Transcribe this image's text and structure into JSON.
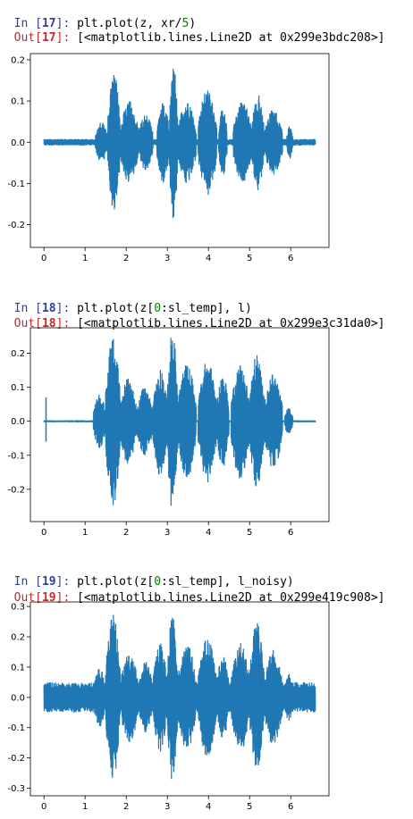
{
  "cells": [
    {
      "in_prompt": "In [",
      "in_num": "17",
      "in_close": "]: ",
      "code_a": "plt.plot(z, xr/",
      "code_num": "5",
      "code_b": ")",
      "out_prompt": "Out[",
      "out_num": "17",
      "out_close": "]: ",
      "output": "[<matplotlib.lines.Line2D at 0x299e3bdc208>]"
    },
    {
      "in_prompt": "In [",
      "in_num": "18",
      "in_close": "]: ",
      "code_a": "plt.plot(z[",
      "code_num": "0",
      "code_b": ":sl_temp], l)",
      "out_prompt": "Out[",
      "out_num": "18",
      "out_close": "]: ",
      "output": "[<matplotlib.lines.Line2D at 0x299e3c31da0>]"
    },
    {
      "in_prompt": "In [",
      "in_num": "19",
      "in_close": "]: ",
      "code_a": "plt.plot(z[",
      "code_num": "0",
      "code_b": ":sl_temp], l_noisy)",
      "out_prompt": "Out[",
      "out_num": "19",
      "out_close": "]: ",
      "output": "[<matplotlib.lines.Line2D at 0x299e419c908>]"
    }
  ],
  "colors": {
    "line": "#1f77b4",
    "in_prompt": "#303f9f",
    "out_prompt": "#c62828"
  },
  "chart_data": [
    {
      "type": "line",
      "xlim": [
        -0.33,
        6.93
      ],
      "ylim": [
        -0.255,
        0.215
      ],
      "xticks": [
        "0",
        "1",
        "2",
        "3",
        "4",
        "5",
        "6"
      ],
      "yticks": [
        "0.2",
        "0.1",
        "0.0",
        "-0.1",
        "-0.2"
      ],
      "x_range": [
        0,
        6.6
      ],
      "noise_floor": 0.008,
      "bursts": [
        {
          "x0": 1.55,
          "x1": 1.85,
          "amp": 0.17
        },
        {
          "x0": 1.25,
          "x1": 1.55,
          "amp": 0.05
        },
        {
          "x0": 1.85,
          "x1": 2.3,
          "amp": 0.1
        },
        {
          "x0": 2.3,
          "x1": 2.65,
          "amp": 0.07
        },
        {
          "x0": 2.75,
          "x1": 3.05,
          "amp": 0.1
        },
        {
          "x0": 3.05,
          "x1": 3.25,
          "amp": 0.19
        },
        {
          "x0": 3.25,
          "x1": 3.7,
          "amp": 0.1
        },
        {
          "x0": 3.75,
          "x1": 4.2,
          "amp": 0.13
        },
        {
          "x0": 4.25,
          "x1": 4.45,
          "amp": 0.09
        },
        {
          "x0": 4.6,
          "x1": 5.05,
          "amp": 0.1
        },
        {
          "x0": 5.05,
          "x1": 5.35,
          "amp": 0.12
        },
        {
          "x0": 5.35,
          "x1": 5.8,
          "amp": 0.08
        },
        {
          "x0": 5.9,
          "x1": 6.05,
          "amp": 0.04
        }
      ]
    },
    {
      "type": "line",
      "xlim": [
        -0.33,
        6.93
      ],
      "ylim": [
        -0.295,
        0.275
      ],
      "xticks": [
        "0",
        "1",
        "2",
        "3",
        "4",
        "5",
        "6"
      ],
      "yticks": [
        "0.2",
        "0.1",
        "0.0",
        "-0.1",
        "-0.2"
      ],
      "x_range": [
        0,
        6.6
      ],
      "noise_floor": 0.003,
      "spike": {
        "x": 0.05,
        "y_max": 0.07,
        "y_min": -0.06
      },
      "bursts": [
        {
          "x0": 1.5,
          "x1": 1.85,
          "amp": 0.26
        },
        {
          "x0": 1.2,
          "x1": 1.5,
          "amp": 0.08
        },
        {
          "x0": 1.85,
          "x1": 2.25,
          "amp": 0.13
        },
        {
          "x0": 2.25,
          "x1": 2.65,
          "amp": 0.1
        },
        {
          "x0": 2.65,
          "x1": 3.0,
          "amp": 0.16
        },
        {
          "x0": 3.0,
          "x1": 3.25,
          "amp": 0.27
        },
        {
          "x0": 3.25,
          "x1": 3.7,
          "amp": 0.17
        },
        {
          "x0": 3.75,
          "x1": 4.2,
          "amp": 0.18
        },
        {
          "x0": 4.2,
          "x1": 4.5,
          "amp": 0.14
        },
        {
          "x0": 4.55,
          "x1": 5.0,
          "amp": 0.17
        },
        {
          "x0": 5.0,
          "x1": 5.35,
          "amp": 0.2
        },
        {
          "x0": 5.35,
          "x1": 5.8,
          "amp": 0.14
        },
        {
          "x0": 5.85,
          "x1": 6.05,
          "amp": 0.04
        }
      ]
    },
    {
      "type": "line",
      "xlim": [
        -0.33,
        6.93
      ],
      "ylim": [
        -0.325,
        0.315
      ],
      "xticks": [
        "0",
        "1",
        "2",
        "3",
        "4",
        "5",
        "6"
      ],
      "yticks": [
        "0.3",
        "0.2",
        "0.1",
        "0.0",
        "-0.1",
        "-0.2",
        "-0.3"
      ],
      "x_range": [
        0,
        6.6
      ],
      "noise_floor": 0.05,
      "bursts": [
        {
          "x0": 1.5,
          "x1": 1.85,
          "amp": 0.28
        },
        {
          "x0": 1.2,
          "x1": 1.5,
          "amp": 0.1
        },
        {
          "x0": 1.85,
          "x1": 2.3,
          "amp": 0.15
        },
        {
          "x0": 2.3,
          "x1": 2.65,
          "amp": 0.12
        },
        {
          "x0": 2.65,
          "x1": 3.0,
          "amp": 0.18
        },
        {
          "x0": 3.0,
          "x1": 3.25,
          "amp": 0.28
        },
        {
          "x0": 3.25,
          "x1": 3.7,
          "amp": 0.18
        },
        {
          "x0": 3.75,
          "x1": 4.2,
          "amp": 0.2
        },
        {
          "x0": 4.2,
          "x1": 4.5,
          "amp": 0.14
        },
        {
          "x0": 4.55,
          "x1": 5.0,
          "amp": 0.18
        },
        {
          "x0": 5.0,
          "x1": 5.35,
          "amp": 0.25
        },
        {
          "x0": 5.35,
          "x1": 5.8,
          "amp": 0.16
        },
        {
          "x0": 5.85,
          "x1": 6.05,
          "amp": 0.08
        }
      ]
    }
  ]
}
